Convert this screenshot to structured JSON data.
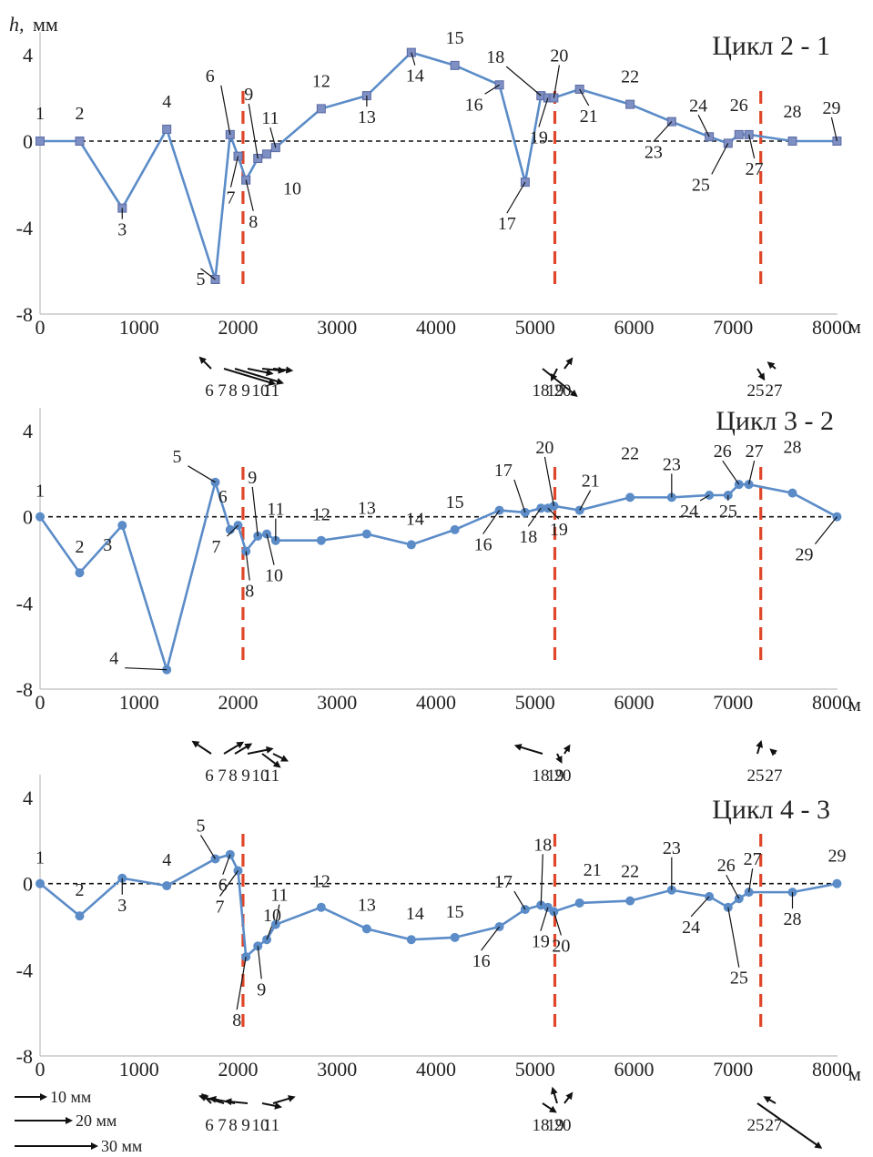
{
  "figure": {
    "ylabel_italic": "h,",
    "ylabel_unit": "мм",
    "x_unit": "м",
    "legend": [
      {
        "label": "10 мм",
        "mm": 10
      },
      {
        "label": "20 мм",
        "mm": 20
      },
      {
        "label": "30 мм",
        "mm": 30
      }
    ]
  },
  "chart_data": [
    {
      "type": "line",
      "title": "Цикл 2 - 1",
      "marker": "square",
      "xlim": [
        0,
        8000
      ],
      "ylim": [
        -8,
        4
      ],
      "x_ticks": [
        "0",
        "1000",
        "2000",
        "3000",
        "4000",
        "5000",
        "6000",
        "7000",
        "8000"
      ],
      "y_ticks": [
        "4",
        "0",
        "-4",
        "-8"
      ],
      "zero_line": true,
      "vertical_markers": [
        2050,
        5200,
        7280
      ],
      "points": [
        {
          "id": "1",
          "x": 0,
          "y": 0
        },
        {
          "id": "2",
          "x": 400,
          "y": 0
        },
        {
          "id": "3",
          "x": 830,
          "y": -3.1
        },
        {
          "id": "4",
          "x": 1280,
          "y": 0.55
        },
        {
          "id": "5",
          "x": 1770,
          "y": -6.4
        },
        {
          "id": "6",
          "x": 1920,
          "y": 0.3
        },
        {
          "id": "7",
          "x": 2000,
          "y": -0.7
        },
        {
          "id": "8",
          "x": 2080,
          "y": -1.8
        },
        {
          "id": "9",
          "x": 2200,
          "y": -0.8
        },
        {
          "id": "10",
          "x": 2290,
          "y": -0.6
        },
        {
          "id": "11",
          "x": 2380,
          "y": -0.3
        },
        {
          "id": "12",
          "x": 2840,
          "y": 1.5
        },
        {
          "id": "13",
          "x": 3300,
          "y": 2.1
        },
        {
          "id": "14",
          "x": 3750,
          "y": 4.1
        },
        {
          "id": "15",
          "x": 4190,
          "y": 3.5
        },
        {
          "id": "16",
          "x": 4640,
          "y": 2.6
        },
        {
          "id": "17",
          "x": 4900,
          "y": -1.9
        },
        {
          "id": "18",
          "x": 5060,
          "y": 2.1
        },
        {
          "id": "19",
          "x": 5130,
          "y": 2.0
        },
        {
          "id": "20",
          "x": 5190,
          "y": 2.0
        },
        {
          "id": "21",
          "x": 5450,
          "y": 2.4
        },
        {
          "id": "22",
          "x": 5960,
          "y": 1.7
        },
        {
          "id": "23",
          "x": 6380,
          "y": 0.9
        },
        {
          "id": "24",
          "x": 6760,
          "y": 0.2
        },
        {
          "id": "25",
          "x": 6950,
          "y": -0.1
        },
        {
          "id": "26",
          "x": 7060,
          "y": 0.3
        },
        {
          "id": "27",
          "x": 7160,
          "y": 0.3
        },
        {
          "id": "28",
          "x": 7600,
          "y": 0
        },
        {
          "id": "29",
          "x": 8050,
          "y": 0
        }
      ],
      "vectors": [
        {
          "id": "6",
          "mm": 5
        },
        {
          "id": "7",
          "mm": 17
        },
        {
          "id": "8",
          "mm": 16
        },
        {
          "id": "9",
          "mm": 8
        },
        {
          "id": "10",
          "mm": 7
        },
        {
          "id": "11",
          "mm": 6
        },
        {
          "id": "18",
          "mm": 14
        },
        {
          "id": "19",
          "mm": 4
        },
        {
          "id": "20",
          "mm": 4
        },
        {
          "id": "25",
          "mm": 4
        },
        {
          "id": "27",
          "mm": 3
        }
      ]
    },
    {
      "type": "line",
      "title": "Цикл 3 - 2",
      "marker": "circle",
      "xlim": [
        0,
        8000
      ],
      "ylim": [
        -8,
        4
      ],
      "x_ticks": [
        "0",
        "1000",
        "2000",
        "3000",
        "4000",
        "5000",
        "6000",
        "7000",
        "8000"
      ],
      "y_ticks": [
        "4",
        "0",
        "-4",
        "-8"
      ],
      "zero_line": true,
      "vertical_markers": [
        2050,
        5200,
        7280
      ],
      "points": [
        {
          "id": "1",
          "x": 0,
          "y": 0
        },
        {
          "id": "2",
          "x": 400,
          "y": -2.6
        },
        {
          "id": "3",
          "x": 830,
          "y": -0.4
        },
        {
          "id": "4",
          "x": 1280,
          "y": -7.1
        },
        {
          "id": "5",
          "x": 1770,
          "y": 1.6
        },
        {
          "id": "6",
          "x": 1920,
          "y": -0.6
        },
        {
          "id": "7",
          "x": 2000,
          "y": -0.4
        },
        {
          "id": "8",
          "x": 2080,
          "y": -1.6
        },
        {
          "id": "9",
          "x": 2200,
          "y": -0.9
        },
        {
          "id": "10",
          "x": 2290,
          "y": -0.8
        },
        {
          "id": "11",
          "x": 2380,
          "y": -1.1
        },
        {
          "id": "12",
          "x": 2840,
          "y": -1.1
        },
        {
          "id": "13",
          "x": 3300,
          "y": -0.8
        },
        {
          "id": "14",
          "x": 3750,
          "y": -1.3
        },
        {
          "id": "15",
          "x": 4190,
          "y": -0.6
        },
        {
          "id": "16",
          "x": 4640,
          "y": 0.3
        },
        {
          "id": "17",
          "x": 4900,
          "y": 0.2
        },
        {
          "id": "18",
          "x": 5060,
          "y": 0.4
        },
        {
          "id": "19",
          "x": 5130,
          "y": 0.4
        },
        {
          "id": "20",
          "x": 5190,
          "y": 0.5
        },
        {
          "id": "21",
          "x": 5450,
          "y": 0.3
        },
        {
          "id": "22",
          "x": 5960,
          "y": 0.9
        },
        {
          "id": "23",
          "x": 6380,
          "y": 0.9
        },
        {
          "id": "24",
          "x": 6760,
          "y": 1.0
        },
        {
          "id": "25",
          "x": 6950,
          "y": 1.0
        },
        {
          "id": "26",
          "x": 7060,
          "y": 1.5
        },
        {
          "id": "27",
          "x": 7160,
          "y": 1.5
        },
        {
          "id": "28",
          "x": 7600,
          "y": 1.1
        },
        {
          "id": "29",
          "x": 8050,
          "y": 0
        }
      ],
      "vectors": [
        {
          "id": "6",
          "mm": 7
        },
        {
          "id": "7",
          "mm": 7
        },
        {
          "id": "8",
          "mm": 6
        },
        {
          "id": "9",
          "mm": 8
        },
        {
          "id": "10",
          "mm": 7
        },
        {
          "id": "11",
          "mm": 5
        },
        {
          "id": "18",
          "mm": 9
        },
        {
          "id": "19",
          "mm": 3
        },
        {
          "id": "20",
          "mm": 3
        },
        {
          "id": "25",
          "mm": 4
        },
        {
          "id": "27",
          "mm": 2
        }
      ]
    },
    {
      "type": "line",
      "title": "Цикл 4 - 3",
      "marker": "circle",
      "xlim": [
        0,
        8000
      ],
      "ylim": [
        -8,
        4
      ],
      "x_ticks": [
        "0",
        "1000",
        "2000",
        "3000",
        "4000",
        "5000",
        "6000",
        "7000",
        "8000"
      ],
      "y_ticks": [
        "4",
        "0",
        "-4",
        "-8"
      ],
      "zero_line": true,
      "vertical_markers": [
        2050,
        5200,
        7280
      ],
      "points": [
        {
          "id": "1",
          "x": 0,
          "y": 0
        },
        {
          "id": "2",
          "x": 400,
          "y": -1.5
        },
        {
          "id": "3",
          "x": 830,
          "y": 0.25
        },
        {
          "id": "4",
          "x": 1280,
          "y": -0.1
        },
        {
          "id": "5",
          "x": 1770,
          "y": 1.15
        },
        {
          "id": "6",
          "x": 1920,
          "y": 1.35
        },
        {
          "id": "7",
          "x": 2000,
          "y": 0.6
        },
        {
          "id": "8",
          "x": 2080,
          "y": -3.4
        },
        {
          "id": "9",
          "x": 2200,
          "y": -2.9
        },
        {
          "id": "10",
          "x": 2290,
          "y": -2.6
        },
        {
          "id": "11",
          "x": 2380,
          "y": -1.9
        },
        {
          "id": "12",
          "x": 2840,
          "y": -1.1
        },
        {
          "id": "13",
          "x": 3300,
          "y": -2.1
        },
        {
          "id": "14",
          "x": 3750,
          "y": -2.6
        },
        {
          "id": "15",
          "x": 4190,
          "y": -2.5
        },
        {
          "id": "16",
          "x": 4640,
          "y": -2.0
        },
        {
          "id": "17",
          "x": 4900,
          "y": -1.2
        },
        {
          "id": "18",
          "x": 5060,
          "y": -1.0
        },
        {
          "id": "19",
          "x": 5130,
          "y": -1.1
        },
        {
          "id": "20",
          "x": 5190,
          "y": -1.3
        },
        {
          "id": "21",
          "x": 5450,
          "y": -0.9
        },
        {
          "id": "22",
          "x": 5960,
          "y": -0.8
        },
        {
          "id": "23",
          "x": 6380,
          "y": -0.3
        },
        {
          "id": "24",
          "x": 6760,
          "y": -0.6
        },
        {
          "id": "25",
          "x": 6950,
          "y": -1.1
        },
        {
          "id": "26",
          "x": 7060,
          "y": -0.7
        },
        {
          "id": "27",
          "x": 7160,
          "y": -0.4
        },
        {
          "id": "28",
          "x": 7600,
          "y": -0.4
        },
        {
          "id": "29",
          "x": 8050,
          "y": 0
        }
      ],
      "vectors": [
        {
          "id": "6",
          "mm": 4
        },
        {
          "id": "7",
          "mm": 8
        },
        {
          "id": "8",
          "mm": 8
        },
        {
          "id": "9",
          "mm": 7
        },
        {
          "id": "10",
          "mm": 6
        },
        {
          "id": "11",
          "mm": 7
        },
        {
          "id": "18",
          "mm": 5
        },
        {
          "id": "19",
          "mm": 5
        },
        {
          "id": "20",
          "mm": 4
        },
        {
          "id": "25",
          "mm": 25
        },
        {
          "id": "27",
          "mm": 4
        }
      ]
    }
  ]
}
